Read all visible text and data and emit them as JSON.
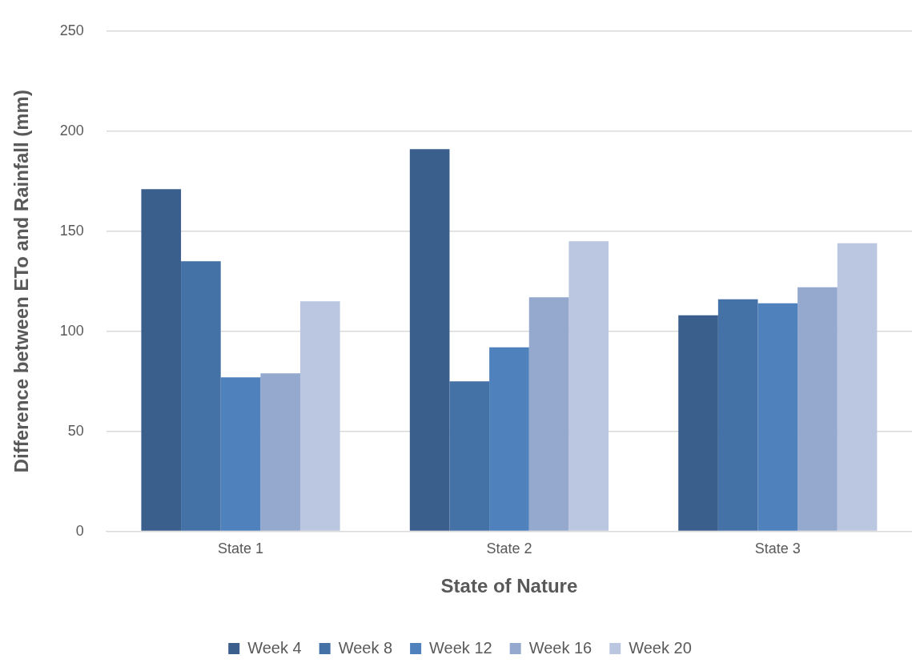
{
  "chart_data": {
    "type": "bar",
    "xlabel": "State of Nature",
    "ylabel": "Difference between ETo and Rainfall (mm)",
    "categories": [
      "State 1",
      "State 2",
      "State 3"
    ],
    "series": [
      {
        "name": "Week 4",
        "color": "#3a5f8d",
        "values": [
          171,
          191,
          108
        ]
      },
      {
        "name": "Week 8",
        "color": "#4472a6",
        "values": [
          135,
          75,
          116
        ]
      },
      {
        "name": "Week 12",
        "color": "#4f81bd",
        "values": [
          77,
          92,
          114
        ]
      },
      {
        "name": "Week 16",
        "color": "#95a9cf",
        "values": [
          79,
          117,
          122
        ]
      },
      {
        "name": "Week 20",
        "color": "#bbc7e0",
        "values": [
          115,
          145,
          144
        ]
      }
    ],
    "ylim": [
      0,
      250
    ],
    "yticks": [
      0,
      50,
      100,
      150,
      200,
      250
    ],
    "grid": "y",
    "legend": "bottom"
  }
}
